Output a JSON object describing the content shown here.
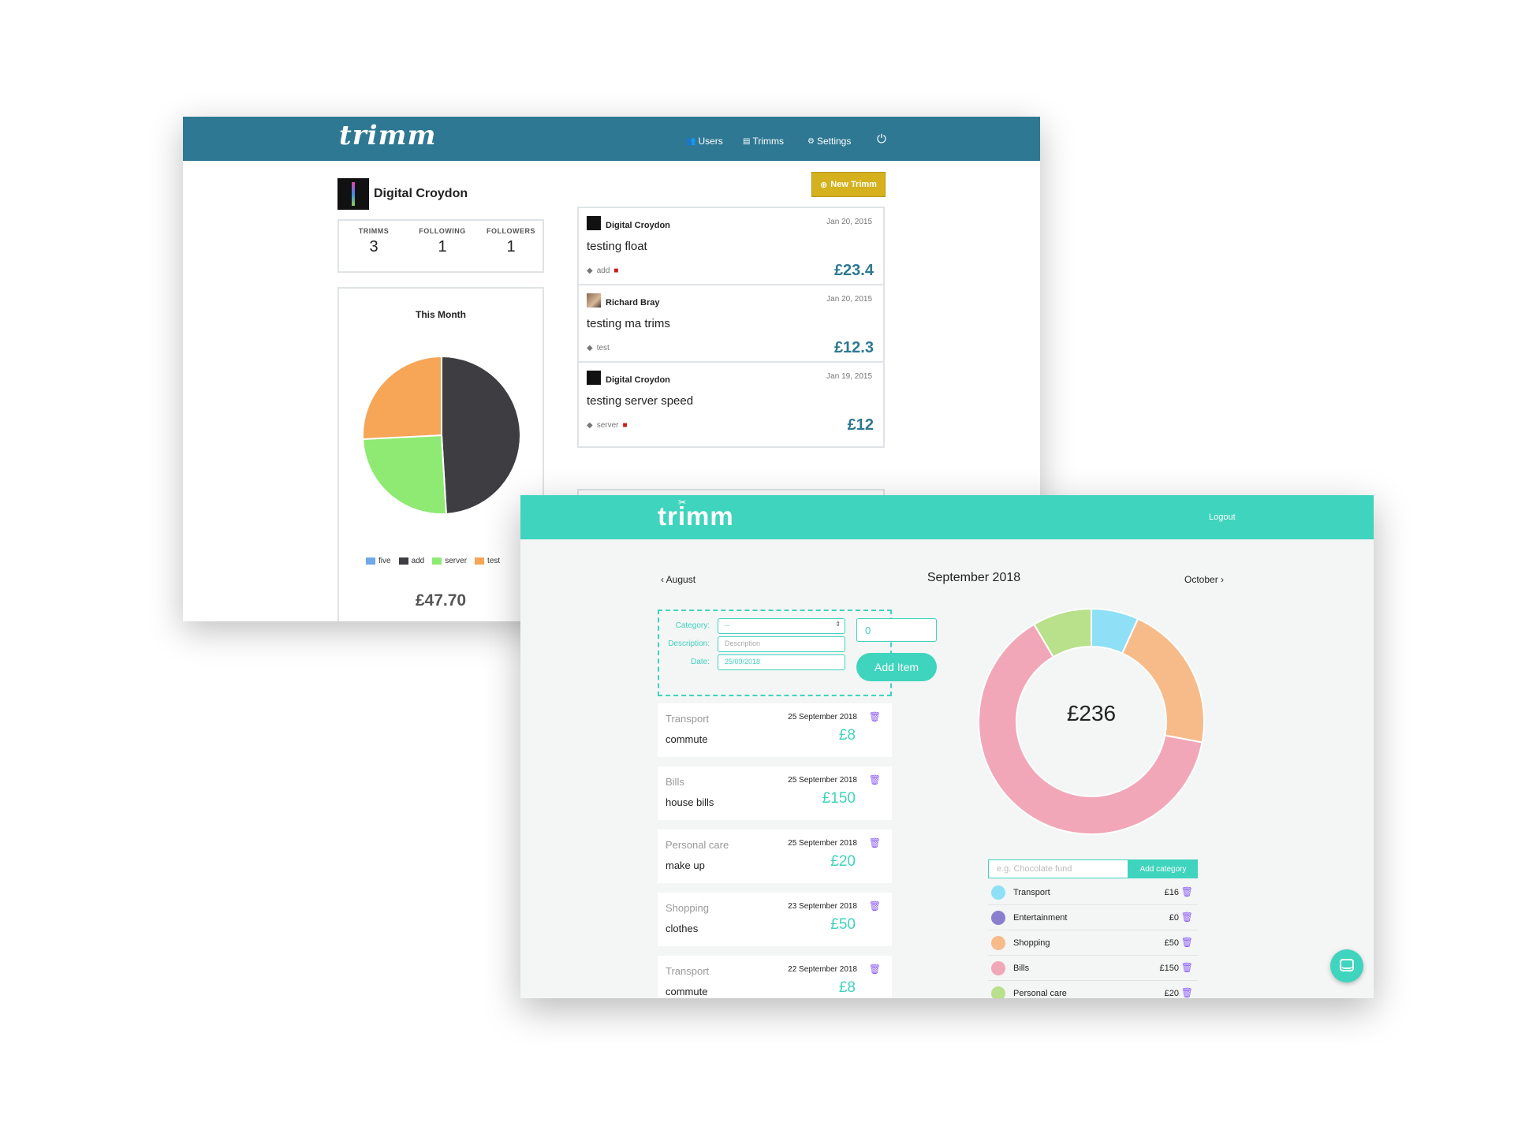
{
  "old_app": {
    "logo": "trimm",
    "nav": [
      {
        "icon": "users-icon",
        "glyph": "👥",
        "label": "Users"
      },
      {
        "icon": "document-icon",
        "glyph": "▤",
        "label": "Trimms"
      },
      {
        "icon": "gear-icon",
        "glyph": "⚙",
        "label": "Settings"
      }
    ],
    "power_glyph": "⏻",
    "profile": {
      "name": "Digital Croydon",
      "stats": [
        {
          "label": "TRIMMS",
          "value": "3"
        },
        {
          "label": "FOLLOWING",
          "value": "1"
        },
        {
          "label": "FOLLOWERS",
          "value": "1"
        }
      ]
    },
    "new_trimm_label": "New Trimm",
    "trimms": [
      {
        "user": "Digital Croydon",
        "date": "Jan 20, 2015",
        "title": "testing float",
        "tag": "add",
        "amount": "£23.4",
        "deletable": true
      },
      {
        "user": "Richard Bray",
        "date": "Jan 20, 2015",
        "title": "testing ma trims",
        "tag": "test",
        "amount": "£12.3",
        "deletable": false
      },
      {
        "user": "Digital Croydon",
        "date": "Jan 19, 2015",
        "title": "testing server speed",
        "tag": "server",
        "amount": "£12",
        "deletable": true
      }
    ],
    "month_card": {
      "title": "This Month",
      "total": "£47.70"
    }
  },
  "chart_data": [
    {
      "type": "pie",
      "title": "This Month",
      "categories": [
        "five",
        "add",
        "server",
        "test"
      ],
      "values": [
        0,
        23.4,
        12,
        12.3
      ],
      "colors": [
        "#6fa8e8",
        "#3d3d42",
        "#8eea72",
        "#f7a556"
      ],
      "legend": "bottom"
    },
    {
      "type": "pie",
      "style": "donut",
      "categories": [
        "Transport",
        "Entertainment",
        "Shopping",
        "Bills",
        "Personal care"
      ],
      "values": [
        16,
        0,
        50,
        150,
        20
      ],
      "colors": [
        "#8fe0f7",
        "#8a7fcf",
        "#f7bb8a",
        "#f2a7b8",
        "#b9e08a"
      ],
      "center_label": "£236"
    }
  ],
  "new_app": {
    "logo": "trimm",
    "logout_label": "Logout",
    "month_nav": {
      "prev": "‹  August",
      "current": "September 2018",
      "next": "October  ›"
    },
    "form": {
      "category_label": "Category:",
      "category_value": "--",
      "description_label": "Description:",
      "description_placeholder": "Description",
      "date_label": "Date:",
      "date_value": "25/09/2018",
      "amount_value": "0",
      "add_item_label": "Add Item"
    },
    "entries": [
      {
        "category": "Transport",
        "date": "25 September 2018",
        "description": "commute",
        "amount": "£8"
      },
      {
        "category": "Bills",
        "date": "25 September 2018",
        "description": "house bills",
        "amount": "£150"
      },
      {
        "category": "Personal care",
        "date": "25 September 2018",
        "description": "make up",
        "amount": "£20"
      },
      {
        "category": "Shopping",
        "date": "23 September 2018",
        "description": "clothes",
        "amount": "£50"
      },
      {
        "category": "Transport",
        "date": "22 September 2018",
        "description": "commute",
        "amount": "£8"
      }
    ],
    "category_input_placeholder": "e.g. Chocolate fund",
    "add_category_label": "Add category",
    "categories": [
      {
        "name": "Transport",
        "value": "£16",
        "color": "#8fe0f7"
      },
      {
        "name": "Entertainment",
        "value": "£0",
        "color": "#8a7fcf"
      },
      {
        "name": "Shopping",
        "value": "£50",
        "color": "#f7bb8a"
      },
      {
        "name": "Bills",
        "value": "£150",
        "color": "#f2a7b8"
      },
      {
        "name": "Personal care",
        "value": "£20",
        "color": "#b9e08a"
      }
    ]
  }
}
